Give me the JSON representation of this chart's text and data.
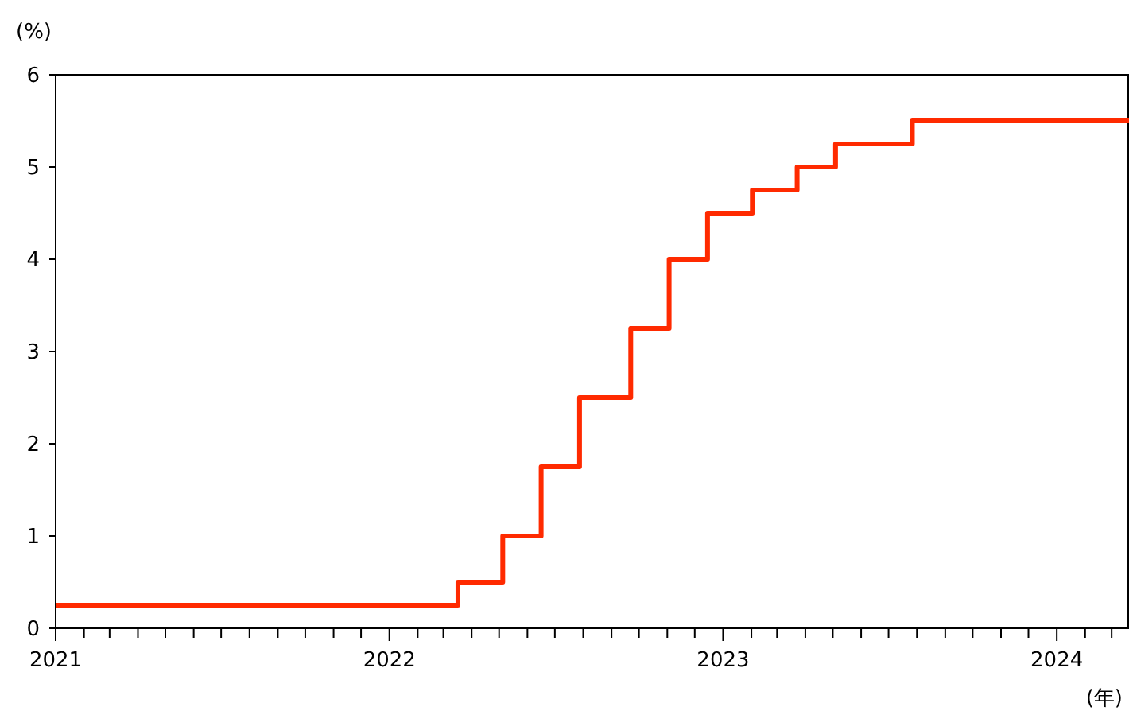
{
  "chart_data": {
    "type": "step",
    "ylabel": "(%)",
    "xlabel": "(年)",
    "x": [
      "2021-01-01",
      "2022-03-17",
      "2022-05-05",
      "2022-06-16",
      "2022-07-28",
      "2022-09-22",
      "2022-11-03",
      "2022-12-15",
      "2023-02-02",
      "2023-03-23",
      "2023-05-04",
      "2023-07-27",
      "2024-03-20"
    ],
    "series": [
      {
        "color": "#ff2a00",
        "values": [
          0.25,
          0.5,
          1.0,
          1.75,
          2.5,
          3.25,
          4.0,
          4.5,
          4.75,
          5.0,
          5.25,
          5.5,
          5.5
        ]
      }
    ],
    "xlim": [
      "2021-01-01",
      "2024-03-20"
    ],
    "xticks": [
      {
        "value": "2021-01-01",
        "label": "2021"
      },
      {
        "value": "2021-02-01",
        "label": null
      },
      {
        "value": "2021-03-01",
        "label": null
      },
      {
        "value": "2021-04-01",
        "label": null
      },
      {
        "value": "2021-05-01",
        "label": null
      },
      {
        "value": "2021-06-01",
        "label": null
      },
      {
        "value": "2021-07-01",
        "label": null
      },
      {
        "value": "2021-08-01",
        "label": null
      },
      {
        "value": "2021-09-01",
        "label": null
      },
      {
        "value": "2021-10-01",
        "label": null
      },
      {
        "value": "2021-11-01",
        "label": null
      },
      {
        "value": "2021-12-01",
        "label": null
      },
      {
        "value": "2022-01-01",
        "label": "2022"
      },
      {
        "value": "2022-02-01",
        "label": null
      },
      {
        "value": "2022-03-01",
        "label": null
      },
      {
        "value": "2022-04-01",
        "label": null
      },
      {
        "value": "2022-05-01",
        "label": null
      },
      {
        "value": "2022-06-01",
        "label": null
      },
      {
        "value": "2022-07-01",
        "label": null
      },
      {
        "value": "2022-08-01",
        "label": null
      },
      {
        "value": "2022-09-01",
        "label": null
      },
      {
        "value": "2022-10-01",
        "label": null
      },
      {
        "value": "2022-11-01",
        "label": null
      },
      {
        "value": "2022-12-01",
        "label": null
      },
      {
        "value": "2023-01-01",
        "label": "2023"
      },
      {
        "value": "2023-02-01",
        "label": null
      },
      {
        "value": "2023-03-01",
        "label": null
      },
      {
        "value": "2023-04-01",
        "label": null
      },
      {
        "value": "2023-05-01",
        "label": null
      },
      {
        "value": "2023-06-01",
        "label": null
      },
      {
        "value": "2023-07-01",
        "label": null
      },
      {
        "value": "2023-08-01",
        "label": null
      },
      {
        "value": "2023-09-01",
        "label": null
      },
      {
        "value": "2023-10-01",
        "label": null
      },
      {
        "value": "2023-11-01",
        "label": null
      },
      {
        "value": "2023-12-01",
        "label": null
      },
      {
        "value": "2024-01-01",
        "label": "2024"
      },
      {
        "value": "2024-02-01",
        "label": null
      },
      {
        "value": "2024-03-01",
        "label": null
      }
    ],
    "ylim": [
      0,
      6
    ],
    "yticks": [
      0,
      1,
      2,
      3,
      4,
      5,
      6
    ],
    "grid": false
  }
}
